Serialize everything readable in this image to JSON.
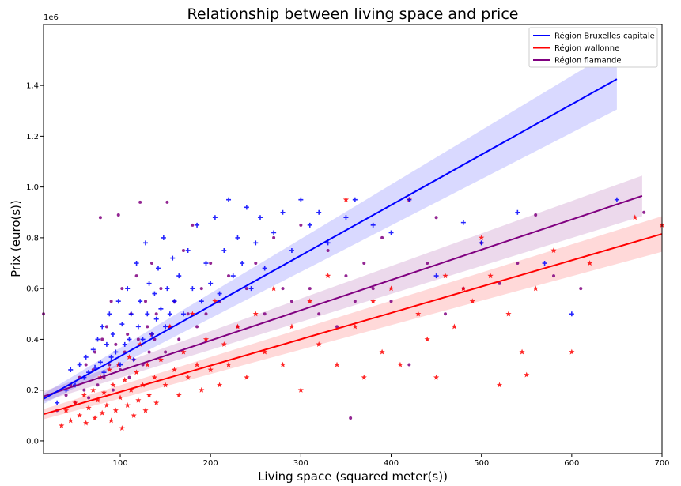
{
  "chart_data": {
    "type": "scatter",
    "title": "Relationship between living space and price",
    "xlabel": "Living space (squared meter(s))",
    "ylabel": "Prix (euro(s))",
    "y_offset_label": "1e6",
    "xlim": [
      15,
      700
    ],
    "ylim": [
      -0.05,
      1.64
    ],
    "x_ticks": [
      100,
      200,
      300,
      400,
      500,
      600,
      700
    ],
    "y_ticks": [
      0.0,
      0.2,
      0.4,
      0.6,
      0.8,
      1.0,
      1.2,
      1.4
    ],
    "legend_position": "top-right",
    "grid": false,
    "series": [
      {
        "name": "Région Bruxelles-capitale",
        "color": "#0000ff",
        "marker": "plus",
        "regression": {
          "x_start": 15,
          "x_end": 650,
          "y_start": 0.165,
          "y_end": 1.425,
          "ci_start": 0.02,
          "ci_end": 0.12
        },
        "points": [
          [
            30,
            0.15
          ],
          [
            40,
            0.2
          ],
          [
            45,
            0.28
          ],
          [
            50,
            0.22
          ],
          [
            55,
            0.3
          ],
          [
            60,
            0.25
          ],
          [
            62,
            0.33
          ],
          [
            65,
            0.27
          ],
          [
            70,
            0.36
          ],
          [
            72,
            0.29
          ],
          [
            75,
            0.4
          ],
          [
            78,
            0.31
          ],
          [
            80,
            0.45
          ],
          [
            82,
            0.27
          ],
          [
            85,
            0.38
          ],
          [
            88,
            0.5
          ],
          [
            90,
            0.33
          ],
          [
            92,
            0.42
          ],
          [
            95,
            0.35
          ],
          [
            98,
            0.55
          ],
          [
            100,
            0.3
          ],
          [
            102,
            0.46
          ],
          [
            105,
            0.38
          ],
          [
            108,
            0.6
          ],
          [
            110,
            0.4
          ],
          [
            112,
            0.5
          ],
          [
            115,
            0.32
          ],
          [
            118,
            0.7
          ],
          [
            120,
            0.45
          ],
          [
            122,
            0.55
          ],
          [
            125,
            0.4
          ],
          [
            128,
            0.78
          ],
          [
            130,
            0.5
          ],
          [
            132,
            0.62
          ],
          [
            135,
            0.42
          ],
          [
            138,
            0.58
          ],
          [
            140,
            0.48
          ],
          [
            142,
            0.68
          ],
          [
            145,
            0.52
          ],
          [
            148,
            0.8
          ],
          [
            150,
            0.45
          ],
          [
            152,
            0.6
          ],
          [
            155,
            0.5
          ],
          [
            158,
            0.72
          ],
          [
            160,
            0.55
          ],
          [
            165,
            0.65
          ],
          [
            170,
            0.5
          ],
          [
            175,
            0.75
          ],
          [
            180,
            0.6
          ],
          [
            185,
            0.85
          ],
          [
            190,
            0.55
          ],
          [
            195,
            0.7
          ],
          [
            200,
            0.62
          ],
          [
            205,
            0.88
          ],
          [
            210,
            0.58
          ],
          [
            215,
            0.75
          ],
          [
            220,
            0.95
          ],
          [
            225,
            0.65
          ],
          [
            230,
            0.8
          ],
          [
            235,
            0.7
          ],
          [
            240,
            0.92
          ],
          [
            245,
            0.6
          ],
          [
            250,
            0.78
          ],
          [
            255,
            0.88
          ],
          [
            260,
            0.68
          ],
          [
            270,
            0.82
          ],
          [
            280,
            0.9
          ],
          [
            290,
            0.75
          ],
          [
            300,
            0.95
          ],
          [
            310,
            0.85
          ],
          [
            320,
            0.9
          ],
          [
            330,
            0.78
          ],
          [
            350,
            0.88
          ],
          [
            360,
            0.95
          ],
          [
            380,
            0.85
          ],
          [
            400,
            0.82
          ],
          [
            420,
            0.95
          ],
          [
            450,
            0.65
          ],
          [
            480,
            0.86
          ],
          [
            500,
            0.78
          ],
          [
            540,
            0.9
          ],
          [
            570,
            0.7
          ],
          [
            600,
            0.5
          ],
          [
            650,
            0.95
          ]
        ]
      },
      {
        "name": "Région wallonne",
        "color": "#ff0000",
        "marker": "star",
        "regression": {
          "x_start": 15,
          "x_end": 700,
          "y_start": 0.105,
          "y_end": 0.815,
          "ci_start": 0.02,
          "ci_end": 0.07
        },
        "points": [
          [
            35,
            0.06
          ],
          [
            40,
            0.12
          ],
          [
            45,
            0.08
          ],
          [
            50,
            0.15
          ],
          [
            55,
            0.1
          ],
          [
            60,
            0.18
          ],
          [
            62,
            0.07
          ],
          [
            65,
            0.13
          ],
          [
            70,
            0.2
          ],
          [
            72,
            0.09
          ],
          [
            75,
            0.16
          ],
          [
            78,
            0.25
          ],
          [
            80,
            0.11
          ],
          [
            82,
            0.19
          ],
          [
            85,
            0.14
          ],
          [
            88,
            0.28
          ],
          [
            90,
            0.08
          ],
          [
            92,
            0.22
          ],
          [
            95,
            0.12
          ],
          [
            98,
            0.3
          ],
          [
            100,
            0.17
          ],
          [
            102,
            0.05
          ],
          [
            105,
            0.24
          ],
          [
            108,
            0.14
          ],
          [
            110,
            0.33
          ],
          [
            112,
            0.2
          ],
          [
            115,
            0.1
          ],
          [
            118,
            0.27
          ],
          [
            120,
            0.16
          ],
          [
            122,
            0.38
          ],
          [
            125,
            0.22
          ],
          [
            128,
            0.12
          ],
          [
            130,
            0.3
          ],
          [
            132,
            0.18
          ],
          [
            135,
            0.42
          ],
          [
            138,
            0.25
          ],
          [
            140,
            0.15
          ],
          [
            145,
            0.32
          ],
          [
            150,
            0.22
          ],
          [
            155,
            0.45
          ],
          [
            160,
            0.28
          ],
          [
            165,
            0.18
          ],
          [
            170,
            0.35
          ],
          [
            175,
            0.25
          ],
          [
            180,
            0.5
          ],
          [
            185,
            0.3
          ],
          [
            190,
            0.2
          ],
          [
            195,
            0.4
          ],
          [
            200,
            0.28
          ],
          [
            205,
            0.55
          ],
          [
            210,
            0.22
          ],
          [
            215,
            0.38
          ],
          [
            220,
            0.3
          ],
          [
            230,
            0.45
          ],
          [
            240,
            0.25
          ],
          [
            250,
            0.5
          ],
          [
            260,
            0.35
          ],
          [
            270,
            0.6
          ],
          [
            280,
            0.3
          ],
          [
            290,
            0.45
          ],
          [
            300,
            0.2
          ],
          [
            310,
            0.55
          ],
          [
            320,
            0.38
          ],
          [
            330,
            0.65
          ],
          [
            340,
            0.3
          ],
          [
            350,
            0.95
          ],
          [
            360,
            0.45
          ],
          [
            370,
            0.25
          ],
          [
            380,
            0.55
          ],
          [
            390,
            0.35
          ],
          [
            400,
            0.6
          ],
          [
            410,
            0.3
          ],
          [
            420,
            0.95
          ],
          [
            430,
            0.5
          ],
          [
            440,
            0.4
          ],
          [
            450,
            0.25
          ],
          [
            460,
            0.65
          ],
          [
            470,
            0.45
          ],
          [
            480,
            0.6
          ],
          [
            490,
            0.55
          ],
          [
            500,
            0.8
          ],
          [
            510,
            0.65
          ],
          [
            520,
            0.22
          ],
          [
            530,
            0.5
          ],
          [
            545,
            0.35
          ],
          [
            550,
            0.26
          ],
          [
            560,
            0.6
          ],
          [
            580,
            0.75
          ],
          [
            600,
            0.35
          ],
          [
            620,
            0.7
          ],
          [
            670,
            0.88
          ],
          [
            700,
            0.85
          ]
        ]
      },
      {
        "name": "Région flamande",
        "color": "#800080",
        "marker": "dot",
        "regression": {
          "x_start": 15,
          "x_end": 678,
          "y_start": 0.175,
          "y_end": 0.965,
          "ci_start": 0.02,
          "ci_end": 0.08
        },
        "points": [
          [
            15,
            0.5
          ],
          [
            30,
            0.12
          ],
          [
            40,
            0.18
          ],
          [
            45,
            0.22
          ],
          [
            50,
            0.15
          ],
          [
            55,
            0.25
          ],
          [
            60,
            0.2
          ],
          [
            62,
            0.3
          ],
          [
            65,
            0.17
          ],
          [
            70,
            0.28
          ],
          [
            72,
            0.35
          ],
          [
            75,
            0.22
          ],
          [
            78,
            0.88
          ],
          [
            80,
            0.4
          ],
          [
            82,
            0.25
          ],
          [
            85,
            0.45
          ],
          [
            88,
            0.3
          ],
          [
            90,
            0.55
          ],
          [
            92,
            0.2
          ],
          [
            95,
            0.38
          ],
          [
            98,
            0.89
          ],
          [
            100,
            0.28
          ],
          [
            102,
            0.6
          ],
          [
            105,
            0.35
          ],
          [
            108,
            0.42
          ],
          [
            110,
            0.25
          ],
          [
            112,
            0.5
          ],
          [
            115,
            0.32
          ],
          [
            118,
            0.65
          ],
          [
            120,
            0.4
          ],
          [
            122,
            0.94
          ],
          [
            125,
            0.3
          ],
          [
            128,
            0.55
          ],
          [
            130,
            0.45
          ],
          [
            132,
            0.35
          ],
          [
            135,
            0.7
          ],
          [
            138,
            0.4
          ],
          [
            140,
            0.5
          ],
          [
            145,
            0.6
          ],
          [
            150,
            0.35
          ],
          [
            152,
            0.94
          ],
          [
            155,
            0.45
          ],
          [
            160,
            0.55
          ],
          [
            165,
            0.4
          ],
          [
            170,
            0.75
          ],
          [
            175,
            0.5
          ],
          [
            180,
            0.85
          ],
          [
            185,
            0.45
          ],
          [
            190,
            0.6
          ],
          [
            195,
            0.5
          ],
          [
            200,
            0.7
          ],
          [
            210,
            0.55
          ],
          [
            220,
            0.65
          ],
          [
            230,
            0.45
          ],
          [
            240,
            0.6
          ],
          [
            250,
            0.7
          ],
          [
            260,
            0.5
          ],
          [
            270,
            0.8
          ],
          [
            280,
            0.6
          ],
          [
            290,
            0.55
          ],
          [
            300,
            0.85
          ],
          [
            310,
            0.6
          ],
          [
            320,
            0.5
          ],
          [
            330,
            0.75
          ],
          [
            340,
            0.45
          ],
          [
            350,
            0.65
          ],
          [
            355,
            0.09
          ],
          [
            360,
            0.55
          ],
          [
            370,
            0.7
          ],
          [
            380,
            0.6
          ],
          [
            390,
            0.8
          ],
          [
            400,
            0.55
          ],
          [
            420,
            0.3
          ],
          [
            440,
            0.7
          ],
          [
            450,
            0.88
          ],
          [
            460,
            0.5
          ],
          [
            480,
            0.6
          ],
          [
            500,
            0.78
          ],
          [
            520,
            0.62
          ],
          [
            540,
            0.7
          ],
          [
            560,
            0.89
          ],
          [
            580,
            0.65
          ],
          [
            610,
            0.6
          ],
          [
            680,
            0.9
          ]
        ]
      }
    ]
  }
}
